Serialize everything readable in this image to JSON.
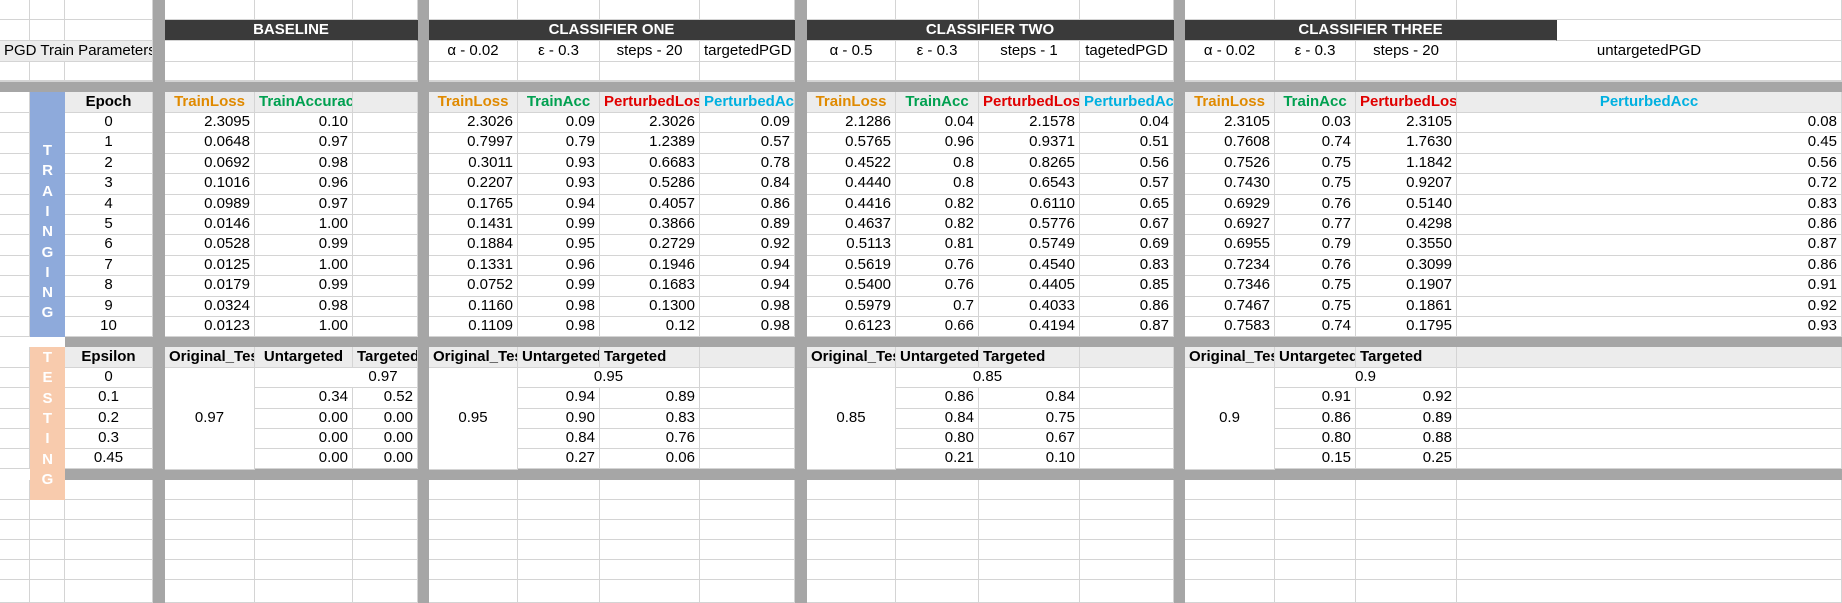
{
  "headers": {
    "baseline": "BASELINE",
    "c1": "CLASSIFIER ONE",
    "c2": "CLASSIFIER TWO",
    "c3": "CLASSIFIER THREE"
  },
  "params": {
    "label": "PGD Train Parameters",
    "c1": [
      "α - 0.02",
      "ε - 0.3",
      "steps - 20",
      "targetedPGD"
    ],
    "c2": [
      "α - 0.5",
      "ε - 0.3",
      "steps - 1",
      "tagetedPGD"
    ],
    "c3": [
      "α - 0.02",
      "ε - 0.3",
      "steps - 20",
      "untargetedPGD"
    ]
  },
  "training": {
    "side_label": [
      "T",
      "R",
      "A",
      "I",
      "N",
      "G",
      "I",
      "N",
      "G"
    ],
    "epoch_header": "Epoch",
    "baseline_headers": [
      "TrainLoss",
      "TrainAccuracy"
    ],
    "clf_headers": [
      "TrainLoss",
      "TrainAcc",
      "PerturbedLoss",
      "PerturbedAcc"
    ],
    "header_colors": {
      "loss": "#e08a00",
      "acc": "#00a050",
      "ploss": "#e00000",
      "pacc": "#00b0e0"
    },
    "epochs": [
      "0",
      "1",
      "2",
      "3",
      "4",
      "5",
      "6",
      "7",
      "8",
      "9",
      "10"
    ],
    "baseline": [
      [
        "2.3095",
        "0.10"
      ],
      [
        "0.0648",
        "0.97"
      ],
      [
        "0.0692",
        "0.98"
      ],
      [
        "0.1016",
        "0.96"
      ],
      [
        "0.0989",
        "0.97"
      ],
      [
        "0.0146",
        "1.00"
      ],
      [
        "0.0528",
        "0.99"
      ],
      [
        "0.0125",
        "1.00"
      ],
      [
        "0.0179",
        "0.99"
      ],
      [
        "0.0324",
        "0.98"
      ],
      [
        "0.0123",
        "1.00"
      ]
    ],
    "c1": [
      [
        "2.3026",
        "0.09",
        "2.3026",
        "0.09"
      ],
      [
        "0.7997",
        "0.79",
        "1.2389",
        "0.57"
      ],
      [
        "0.3011",
        "0.93",
        "0.6683",
        "0.78"
      ],
      [
        "0.2207",
        "0.93",
        "0.5286",
        "0.84"
      ],
      [
        "0.1765",
        "0.94",
        "0.4057",
        "0.86"
      ],
      [
        "0.1431",
        "0.99",
        "0.3866",
        "0.89"
      ],
      [
        "0.1884",
        "0.95",
        "0.2729",
        "0.92"
      ],
      [
        "0.1331",
        "0.96",
        "0.1946",
        "0.94"
      ],
      [
        "0.0752",
        "0.99",
        "0.1683",
        "0.94"
      ],
      [
        "0.1160",
        "0.98",
        "0.1300",
        "0.98"
      ],
      [
        "0.1109",
        "0.98",
        "0.12",
        "0.98"
      ]
    ],
    "c2": [
      [
        "2.1286",
        "0.04",
        "2.1578",
        "0.04"
      ],
      [
        "0.5765",
        "0.96",
        "0.9371",
        "0.51"
      ],
      [
        "0.4522",
        "0.8",
        "0.8265",
        "0.56"
      ],
      [
        "0.4440",
        "0.8",
        "0.6543",
        "0.57"
      ],
      [
        "0.4416",
        "0.82",
        "0.6110",
        "0.65"
      ],
      [
        "0.4637",
        "0.82",
        "0.5776",
        "0.67"
      ],
      [
        "0.5113",
        "0.81",
        "0.5749",
        "0.69"
      ],
      [
        "0.5619",
        "0.76",
        "0.4540",
        "0.83"
      ],
      [
        "0.5400",
        "0.76",
        "0.4405",
        "0.85"
      ],
      [
        "0.5979",
        "0.7",
        "0.4033",
        "0.86"
      ],
      [
        "0.6123",
        "0.66",
        "0.4194",
        "0.87"
      ]
    ],
    "c3": [
      [
        "2.3105",
        "0.03",
        "2.3105",
        "0.08"
      ],
      [
        "0.7608",
        "0.74",
        "1.7630",
        "0.45"
      ],
      [
        "0.7526",
        "0.75",
        "1.1842",
        "0.56"
      ],
      [
        "0.7430",
        "0.75",
        "0.9207",
        "0.72"
      ],
      [
        "0.6929",
        "0.76",
        "0.5140",
        "0.83"
      ],
      [
        "0.6927",
        "0.77",
        "0.4298",
        "0.86"
      ],
      [
        "0.6955",
        "0.79",
        "0.3550",
        "0.87"
      ],
      [
        "0.7234",
        "0.76",
        "0.3099",
        "0.86"
      ],
      [
        "0.7346",
        "0.75",
        "0.1907",
        "0.91"
      ],
      [
        "0.7467",
        "0.75",
        "0.1861",
        "0.92"
      ],
      [
        "0.7583",
        "0.74",
        "0.1795",
        "0.93"
      ]
    ]
  },
  "testing": {
    "side_label": [
      "T",
      "E",
      "S",
      "T",
      "I",
      "N",
      "G"
    ],
    "epsilon_header": "Epsilon",
    "col_headers": [
      "Original_Test",
      "Untargeted",
      "Targeted"
    ],
    "epsilons": [
      "0",
      "0.1",
      "0.2",
      "0.3",
      "0.45"
    ],
    "baseline": {
      "original": "0.97",
      "eps0": "0.97",
      "rows": [
        [
          "0.34",
          "0.52"
        ],
        [
          "0.00",
          "0.00"
        ],
        [
          "0.00",
          "0.00"
        ],
        [
          "0.00",
          "0.00"
        ]
      ]
    },
    "c1": {
      "original": "0.95",
      "eps0": "0.95",
      "rows": [
        [
          "0.94",
          "0.89"
        ],
        [
          "0.90",
          "0.83"
        ],
        [
          "0.84",
          "0.76"
        ],
        [
          "0.27",
          "0.06"
        ]
      ]
    },
    "c2": {
      "original": "0.85",
      "eps0": "0.85",
      "rows": [
        [
          "0.86",
          "0.84"
        ],
        [
          "0.84",
          "0.75"
        ],
        [
          "0.80",
          "0.67"
        ],
        [
          "0.21",
          "0.10"
        ]
      ]
    },
    "c3": {
      "original": "0.9",
      "eps0": "0.9",
      "rows": [
        [
          "0.91",
          "0.92"
        ],
        [
          "0.86",
          "0.89"
        ],
        [
          "0.80",
          "0.88"
        ],
        [
          "0.15",
          "0.25"
        ]
      ]
    }
  },
  "colors": {
    "training_band": "#8eaadb",
    "testing_band": "#f8cbad",
    "header_dark": "#3a3a3a",
    "separator": "#a6a6a6"
  }
}
